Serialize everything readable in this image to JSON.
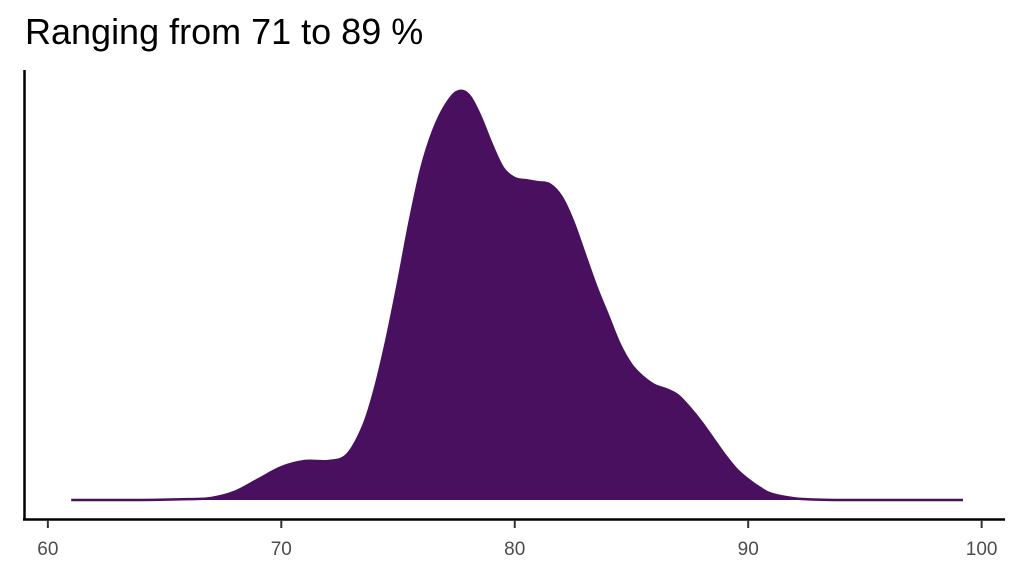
{
  "chart_data": {
    "type": "area",
    "title": "Ranging from 71 to 89 %",
    "xlabel": "",
    "ylabel": "",
    "xlim": [
      59,
      101
    ],
    "ylim": [
      0,
      1
    ],
    "xticks": [
      60,
      70,
      80,
      90,
      100
    ],
    "tick_labels": [
      "60",
      "70",
      "80",
      "90",
      "100"
    ],
    "y_ticks_shown": false,
    "grid": false,
    "legend": "none",
    "fill_color": "#49105f",
    "series": [
      {
        "x": [
          61,
          64,
          66,
          67,
          68,
          69,
          70,
          71,
          72,
          72.8,
          73.5,
          74,
          74.5,
          75,
          75.5,
          76,
          76.5,
          77,
          77.5,
          78,
          78.5,
          79,
          79.5,
          80,
          80.5,
          81,
          81.5,
          82,
          82.5,
          83,
          83.5,
          84,
          84.5,
          85,
          85.5,
          86,
          86.5,
          87,
          87.5,
          88,
          88.5,
          89,
          89.5,
          90,
          90.5,
          91,
          92,
          93,
          94,
          95,
          97,
          99.2
        ],
        "y": [
          0.0,
          0.0,
          0.002,
          0.005,
          0.02,
          0.05,
          0.08,
          0.095,
          0.095,
          0.11,
          0.18,
          0.27,
          0.39,
          0.53,
          0.68,
          0.81,
          0.9,
          0.96,
          0.995,
          0.99,
          0.94,
          0.87,
          0.81,
          0.785,
          0.78,
          0.775,
          0.77,
          0.74,
          0.68,
          0.6,
          0.52,
          0.45,
          0.38,
          0.33,
          0.3,
          0.28,
          0.27,
          0.255,
          0.225,
          0.19,
          0.15,
          0.11,
          0.075,
          0.05,
          0.03,
          0.015,
          0.004,
          0.001,
          0.0,
          0.0,
          0.0,
          0.0
        ]
      }
    ]
  }
}
